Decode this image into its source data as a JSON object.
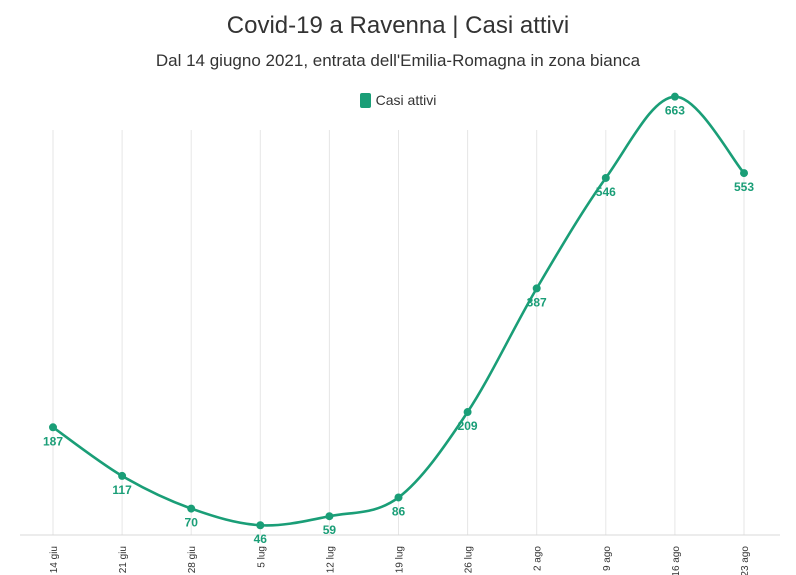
{
  "chart_data": {
    "type": "line",
    "title": "Covid-19 a Ravenna | Casi attivi",
    "subtitle": "Dal 14 giugno 2021, entrata dell'Emilia-Romagna in zona bianca",
    "categories": [
      "14 giu",
      "21 giu",
      "28 giu",
      "5 lug",
      "12 lug",
      "19 lug",
      "26 lug",
      "2 ago",
      "9 ago",
      "16 ago",
      "23 ago"
    ],
    "series": [
      {
        "name": "Casi attivi",
        "color": "#1a9e77",
        "values": [
          187,
          117,
          70,
          46,
          59,
          86,
          209,
          387,
          546,
          663,
          553
        ]
      }
    ],
    "ylim": [
      0,
      700
    ],
    "grid": "vertical",
    "legend": "top-center",
    "data_labels": true
  }
}
